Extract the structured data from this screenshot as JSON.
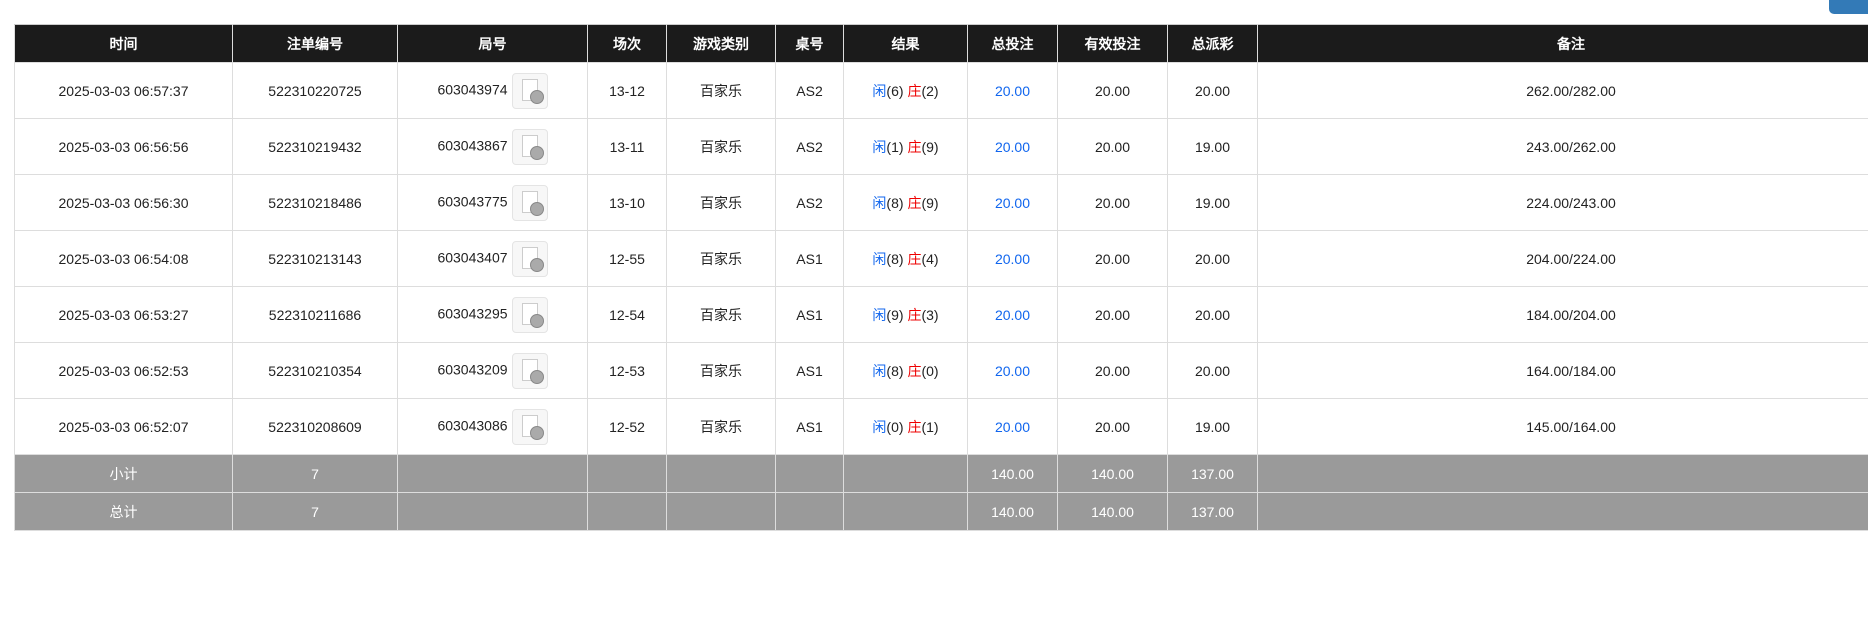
{
  "headers": [
    "时间",
    "注单编号",
    "局号",
    "场次",
    "游戏类别",
    "桌号",
    "结果",
    "总投注",
    "有效投注",
    "总派彩",
    "备注"
  ],
  "rows": [
    {
      "time": "2025-03-03 06:57:37",
      "bet_id": "522310220725",
      "round": "603043974",
      "session": "13-12",
      "game": "百家乐",
      "table": "AS2",
      "player": "闲",
      "player_v": "(6)",
      "banker": "庄",
      "banker_v": "(2)",
      "total": "20.00",
      "valid": "20.00",
      "payout": "20.00",
      "note": "262.00/282.00"
    },
    {
      "time": "2025-03-03 06:56:56",
      "bet_id": "522310219432",
      "round": "603043867",
      "session": "13-11",
      "game": "百家乐",
      "table": "AS2",
      "player": "闲",
      "player_v": "(1)",
      "banker": "庄",
      "banker_v": "(9)",
      "total": "20.00",
      "valid": "20.00",
      "payout": "19.00",
      "note": "243.00/262.00"
    },
    {
      "time": "2025-03-03 06:56:30",
      "bet_id": "522310218486",
      "round": "603043775",
      "session": "13-10",
      "game": "百家乐",
      "table": "AS2",
      "player": "闲",
      "player_v": "(8)",
      "banker": "庄",
      "banker_v": "(9)",
      "total": "20.00",
      "valid": "20.00",
      "payout": "19.00",
      "note": "224.00/243.00"
    },
    {
      "time": "2025-03-03 06:54:08",
      "bet_id": "522310213143",
      "round": "603043407",
      "session": "12-55",
      "game": "百家乐",
      "table": "AS1",
      "player": "闲",
      "player_v": "(8)",
      "banker": "庄",
      "banker_v": "(4)",
      "total": "20.00",
      "valid": "20.00",
      "payout": "20.00",
      "note": "204.00/224.00"
    },
    {
      "time": "2025-03-03 06:53:27",
      "bet_id": "522310211686",
      "round": "603043295",
      "session": "12-54",
      "game": "百家乐",
      "table": "AS1",
      "player": "闲",
      "player_v": "(9)",
      "banker": "庄",
      "banker_v": "(3)",
      "total": "20.00",
      "valid": "20.00",
      "payout": "20.00",
      "note": "184.00/204.00"
    },
    {
      "time": "2025-03-03 06:52:53",
      "bet_id": "522310210354",
      "round": "603043209",
      "session": "12-53",
      "game": "百家乐",
      "table": "AS1",
      "player": "闲",
      "player_v": "(8)",
      "banker": "庄",
      "banker_v": "(0)",
      "total": "20.00",
      "valid": "20.00",
      "payout": "20.00",
      "note": "164.00/184.00"
    },
    {
      "time": "2025-03-03 06:52:07",
      "bet_id": "522310208609",
      "round": "603043086",
      "session": "12-52",
      "game": "百家乐",
      "table": "AS1",
      "player": "闲",
      "player_v": "(0)",
      "banker": "庄",
      "banker_v": "(1)",
      "total": "20.00",
      "valid": "20.00",
      "payout": "19.00",
      "note": "145.00/164.00"
    }
  ],
  "summary": [
    {
      "label": "小计",
      "count": "7",
      "total": "140.00",
      "valid": "140.00",
      "payout": "137.00"
    },
    {
      "label": "总计",
      "count": "7",
      "total": "140.00",
      "valid": "140.00",
      "payout": "137.00"
    }
  ],
  "colors": {
    "header_bg": "#1b1b1b",
    "summary_bg": "#9a9a9a",
    "player": "#1166ee",
    "banker": "#ee0000",
    "accent": "#337ab7"
  },
  "icons": {
    "replay": "video-file-icon"
  }
}
